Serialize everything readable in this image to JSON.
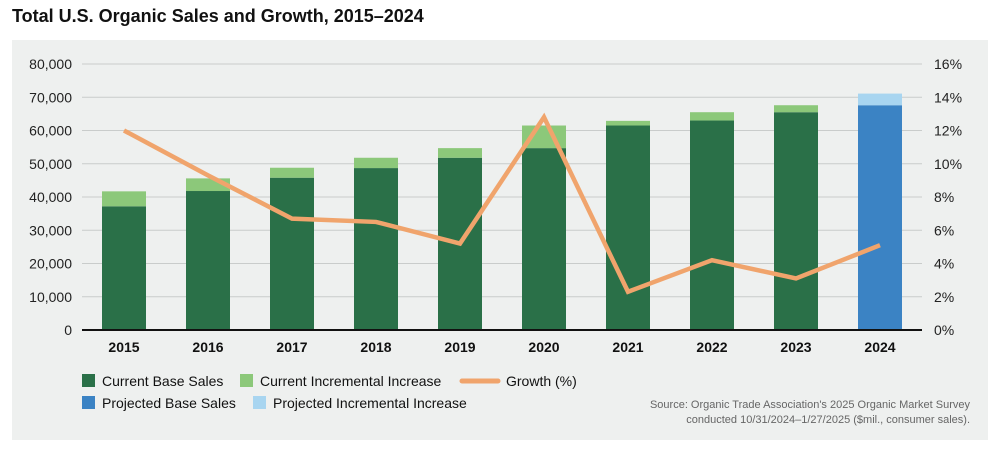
{
  "chart_data": {
    "type": "bar",
    "title": "Total U.S. Organic Sales and Growth, 2015–2024",
    "categories": [
      "2015",
      "2016",
      "2017",
      "2018",
      "2019",
      "2020",
      "2021",
      "2022",
      "2023",
      "2024"
    ],
    "series": [
      {
        "name": "Current Base Sales",
        "values": [
          37200,
          41800,
          45800,
          48700,
          51800,
          54700,
          61500,
          63000,
          65500,
          null
        ],
        "color": "#2a7048"
      },
      {
        "name": "Current Incremental Increase",
        "values": [
          4500,
          3800,
          3000,
          3100,
          2900,
          6800,
          1400,
          2500,
          2100,
          null
        ],
        "color": "#8cc87a"
      },
      {
        "name": "Projected Base Sales",
        "values": [
          null,
          null,
          null,
          null,
          null,
          null,
          null,
          null,
          null,
          67600
        ],
        "color": "#3b83c4"
      },
      {
        "name": "Projected Incremental Increase",
        "values": [
          null,
          null,
          null,
          null,
          null,
          null,
          null,
          null,
          null,
          3500
        ],
        "color": "#a8d5f0"
      },
      {
        "name": "Growth (%)",
        "type": "line",
        "axis": "right",
        "values": [
          12.0,
          9.3,
          6.7,
          6.5,
          5.2,
          12.8,
          2.3,
          4.2,
          3.1,
          5.1
        ],
        "color": "#f0a46c"
      }
    ],
    "y_left": {
      "ylim": [
        0,
        80000
      ],
      "ticks": [
        "0",
        "10,000",
        "20,000",
        "30,000",
        "40,000",
        "50,000",
        "60,000",
        "70,000",
        "80,000"
      ]
    },
    "y_right": {
      "ylim": [
        0,
        16
      ],
      "ticks": [
        "0%",
        "2%",
        "4%",
        "6%",
        "8%",
        "10%",
        "12%",
        "14%",
        "16%"
      ]
    },
    "grid": true,
    "legend_position": "bottom-left"
  },
  "source": {
    "line1": "Source: Organic Trade Association's 2025 Organic Market Survey",
    "line2": "conducted 10/31/2024–1/27/2025 ($mil., consumer sales)."
  }
}
